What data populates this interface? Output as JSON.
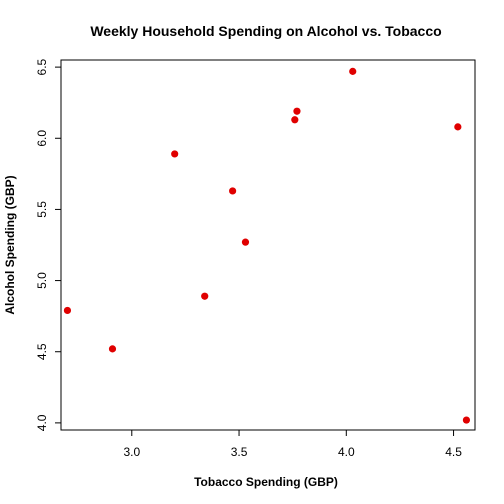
{
  "chart_data": {
    "type": "scatter",
    "title": "Weekly Household Spending on Alcohol vs. Tobacco",
    "xlabel": "Tobacco Spending (GBP)",
    "ylabel": "Alcohol Spending (GBP)",
    "xlim": [
      2.67,
      4.6
    ],
    "ylim": [
      3.95,
      6.55
    ],
    "x_ticks": [
      3.0,
      3.5,
      4.0,
      4.5
    ],
    "x_tick_labels": [
      "3.0",
      "3.5",
      "4.0",
      "4.5"
    ],
    "y_ticks": [
      4.0,
      4.5,
      5.0,
      5.5,
      6.0,
      6.5
    ],
    "y_tick_labels": [
      "4.0",
      "4.5",
      "5.0",
      "5.5",
      "6.0",
      "6.5"
    ],
    "grid": false,
    "legend": "none",
    "point_color": "#e00000",
    "points": [
      {
        "x": 2.7,
        "y": 4.79
      },
      {
        "x": 2.91,
        "y": 4.52
      },
      {
        "x": 3.2,
        "y": 5.89
      },
      {
        "x": 3.34,
        "y": 4.89
      },
      {
        "x": 3.47,
        "y": 5.63
      },
      {
        "x": 3.53,
        "y": 5.27
      },
      {
        "x": 3.76,
        "y": 6.13
      },
      {
        "x": 3.77,
        "y": 6.19
      },
      {
        "x": 4.03,
        "y": 6.47
      },
      {
        "x": 4.52,
        "y": 6.08
      },
      {
        "x": 4.56,
        "y": 4.02
      }
    ]
  }
}
